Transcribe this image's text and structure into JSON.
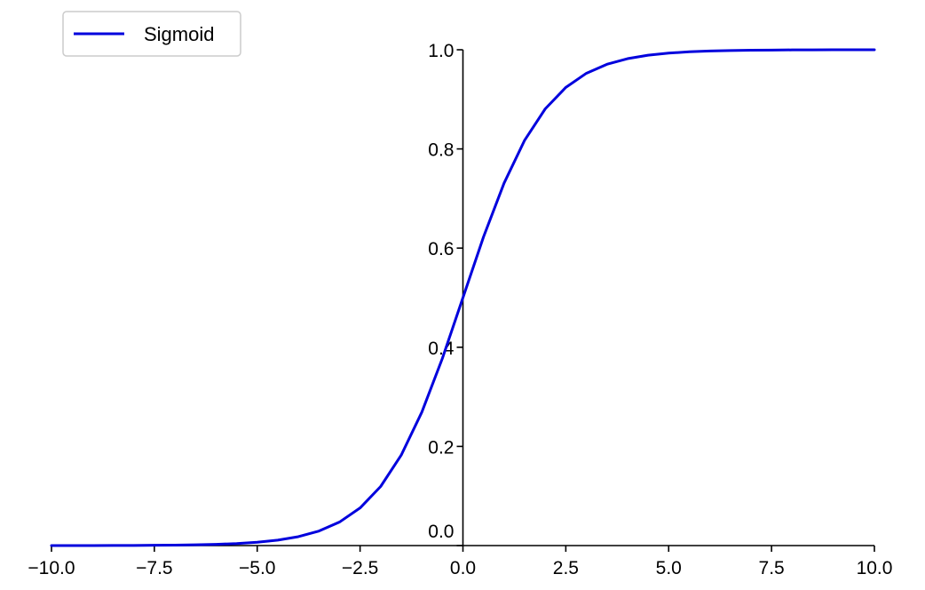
{
  "chart_data": {
    "type": "line",
    "title": "",
    "xlabel": "",
    "ylabel": "",
    "xlim": [
      -10,
      10
    ],
    "ylim": [
      0,
      1
    ],
    "grid": false,
    "legend_position": "top-left",
    "spines": "centered-y-axis at x=0, x-axis at bottom",
    "x_ticks": [
      -10.0,
      -7.5,
      -5.0,
      -2.5,
      0.0,
      2.5,
      5.0,
      7.5,
      10.0
    ],
    "x_tick_labels": [
      "−10.0",
      "−7.5",
      "−5.0",
      "−2.5",
      "0.0",
      "2.5",
      "5.0",
      "7.5",
      "10.0"
    ],
    "y_ticks": [
      0.0,
      0.2,
      0.4,
      0.6,
      0.8,
      1.0
    ],
    "y_tick_labels": [
      "0.0",
      "0.2",
      "0.4",
      "0.6",
      "0.8",
      "1.0"
    ],
    "series": [
      {
        "name": "Sigmoid",
        "color": "#0000dd",
        "x": [
          -10,
          -9.5,
          -9,
          -8.5,
          -8,
          -7.5,
          -7,
          -6.5,
          -6,
          -5.5,
          -5,
          -4.5,
          -4,
          -3.5,
          -3,
          -2.5,
          -2,
          -1.5,
          -1,
          -0.5,
          0,
          0.5,
          1,
          1.5,
          2,
          2.5,
          3,
          3.5,
          4,
          4.5,
          5,
          5.5,
          6,
          6.5,
          7,
          7.5,
          8,
          8.5,
          9,
          9.5,
          10
        ],
        "y": [
          0.0,
          0.0001,
          0.0001,
          0.0002,
          0.0003,
          0.0006,
          0.0009,
          0.0015,
          0.0025,
          0.0041,
          0.0067,
          0.011,
          0.018,
          0.0293,
          0.0474,
          0.0759,
          0.1192,
          0.1824,
          0.2689,
          0.3775,
          0.5,
          0.6225,
          0.7311,
          0.8176,
          0.8808,
          0.9241,
          0.9526,
          0.9707,
          0.982,
          0.989,
          0.9933,
          0.9959,
          0.9975,
          0.9985,
          0.9991,
          0.9994,
          0.9997,
          0.9998,
          0.9999,
          0.9999,
          1.0
        ]
      }
    ]
  }
}
